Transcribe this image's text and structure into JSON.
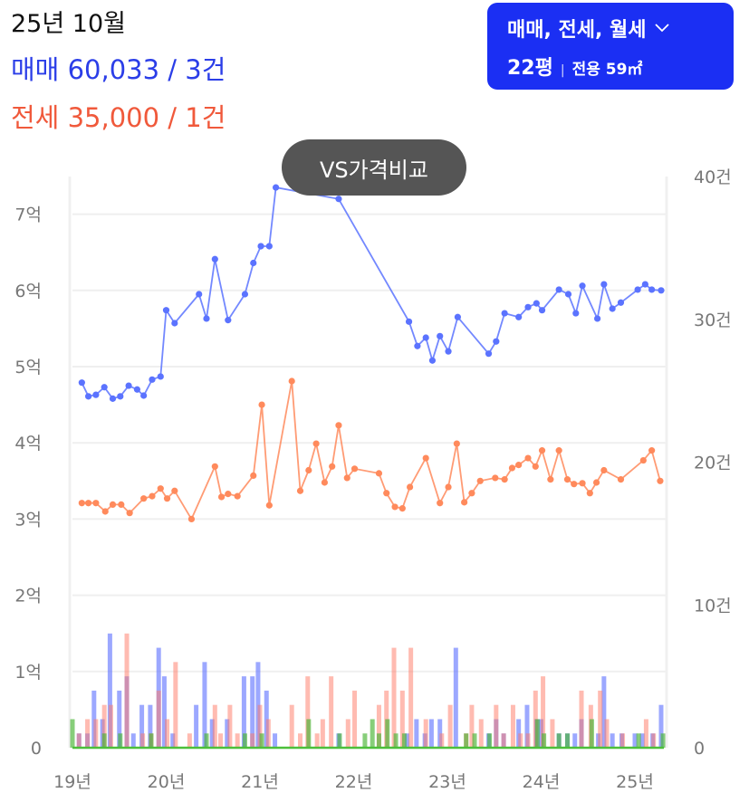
{
  "header": {
    "month": "25년 10월",
    "sale_summary": "매매 60,033 / 3건",
    "jeonse_summary": "전세 35,000 / 1건"
  },
  "filter": {
    "types": "매매, 전세, 월세",
    "pyeong": "22평",
    "separator": "|",
    "area": "전용 59㎡"
  },
  "compare_button": "VS가격비교",
  "colors": {
    "sale": "#5b73ff",
    "jeonse": "#ff8a5c",
    "wolse": "#4cbf3a",
    "button": "#1b2ff3"
  },
  "chart_data": {
    "type": "line+bar",
    "left_ylabel_ticks": [
      "0",
      "1억",
      "2억",
      "3억",
      "4억",
      "5억",
      "6억",
      "7억"
    ],
    "left_ylim": [
      0,
      7.5
    ],
    "right_ylabel_ticks": [
      "0",
      "10건",
      "20건",
      "30건",
      "40건"
    ],
    "right_ylim": [
      0,
      40
    ],
    "x_ticks": [
      "19년",
      "20년",
      "21년",
      "22년",
      "23년",
      "24년",
      "25년"
    ],
    "x_tick_values": [
      2019,
      2020,
      2021,
      2022,
      2023,
      2024,
      2025
    ],
    "grid": true,
    "series": [
      {
        "name": "매매",
        "kind": "line",
        "unit": "억",
        "points": [
          [
            2019.1,
            4.79
          ],
          [
            2019.17,
            4.61
          ],
          [
            2019.25,
            4.63
          ],
          [
            2019.34,
            4.73
          ],
          [
            2019.43,
            4.58
          ],
          [
            2019.51,
            4.61
          ],
          [
            2019.6,
            4.75
          ],
          [
            2019.69,
            4.7
          ],
          [
            2019.76,
            4.62
          ],
          [
            2019.85,
            4.83
          ],
          [
            2019.94,
            4.87
          ],
          [
            2020.0,
            5.74
          ],
          [
            2020.09,
            5.57
          ],
          [
            2020.35,
            5.95
          ],
          [
            2020.43,
            5.63
          ],
          [
            2020.52,
            6.41
          ],
          [
            2020.66,
            5.61
          ],
          [
            2020.84,
            5.95
          ],
          [
            2020.93,
            6.36
          ],
          [
            2021.01,
            6.58
          ],
          [
            2021.1,
            6.58
          ],
          [
            2021.17,
            7.35
          ],
          [
            2021.84,
            7.2
          ],
          [
            2022.59,
            5.59
          ],
          [
            2022.68,
            5.27
          ],
          [
            2022.77,
            5.38
          ],
          [
            2022.84,
            5.08
          ],
          [
            2022.92,
            5.4
          ],
          [
            2023.01,
            5.2
          ],
          [
            2023.11,
            5.65
          ],
          [
            2023.44,
            5.17
          ],
          [
            2023.52,
            5.33
          ],
          [
            2023.61,
            5.7
          ],
          [
            2023.76,
            5.65
          ],
          [
            2023.86,
            5.78
          ],
          [
            2023.95,
            5.83
          ],
          [
            2024.01,
            5.74
          ],
          [
            2024.19,
            6.01
          ],
          [
            2024.29,
            5.95
          ],
          [
            2024.37,
            5.7
          ],
          [
            2024.44,
            6.06
          ],
          [
            2024.6,
            5.63
          ],
          [
            2024.67,
            6.08
          ],
          [
            2024.76,
            5.76
          ],
          [
            2024.85,
            5.84
          ],
          [
            2025.03,
            6.01
          ],
          [
            2025.11,
            6.08
          ],
          [
            2025.18,
            6.01
          ],
          [
            2025.28,
            6.0
          ]
        ]
      },
      {
        "name": "전세",
        "kind": "line",
        "unit": "억",
        "points": [
          [
            2019.1,
            3.21
          ],
          [
            2019.17,
            3.21
          ],
          [
            2019.25,
            3.21
          ],
          [
            2019.35,
            3.1
          ],
          [
            2019.43,
            3.19
          ],
          [
            2019.52,
            3.19
          ],
          [
            2019.61,
            3.08
          ],
          [
            2019.76,
            3.27
          ],
          [
            2019.85,
            3.3
          ],
          [
            2019.94,
            3.4
          ],
          [
            2020.01,
            3.27
          ],
          [
            2020.09,
            3.37
          ],
          [
            2020.27,
            3.0
          ],
          [
            2020.52,
            3.69
          ],
          [
            2020.59,
            3.29
          ],
          [
            2020.66,
            3.33
          ],
          [
            2020.76,
            3.3
          ],
          [
            2020.93,
            3.57
          ],
          [
            2021.02,
            4.5
          ],
          [
            2021.1,
            3.18
          ],
          [
            2021.34,
            4.81
          ],
          [
            2021.43,
            3.37
          ],
          [
            2021.52,
            3.64
          ],
          [
            2021.6,
            3.99
          ],
          [
            2021.69,
            3.48
          ],
          [
            2021.77,
            3.69
          ],
          [
            2021.84,
            4.23
          ],
          [
            2021.93,
            3.54
          ],
          [
            2022.01,
            3.66
          ],
          [
            2022.27,
            3.6
          ],
          [
            2022.35,
            3.34
          ],
          [
            2022.44,
            3.16
          ],
          [
            2022.52,
            3.14
          ],
          [
            2022.6,
            3.42
          ],
          [
            2022.77,
            3.8
          ],
          [
            2022.92,
            3.21
          ],
          [
            2023.01,
            3.42
          ],
          [
            2023.1,
            3.99
          ],
          [
            2023.18,
            3.22
          ],
          [
            2023.26,
            3.34
          ],
          [
            2023.35,
            3.5
          ],
          [
            2023.51,
            3.54
          ],
          [
            2023.61,
            3.52
          ],
          [
            2023.69,
            3.67
          ],
          [
            2023.76,
            3.71
          ],
          [
            2023.86,
            3.8
          ],
          [
            2023.94,
            3.69
          ],
          [
            2024.01,
            3.9
          ],
          [
            2024.1,
            3.52
          ],
          [
            2024.19,
            3.9
          ],
          [
            2024.28,
            3.52
          ],
          [
            2024.35,
            3.46
          ],
          [
            2024.44,
            3.47
          ],
          [
            2024.52,
            3.34
          ],
          [
            2024.59,
            3.48
          ],
          [
            2024.67,
            3.64
          ],
          [
            2024.85,
            3.52
          ],
          [
            2025.09,
            3.77
          ],
          [
            2025.18,
            3.9
          ],
          [
            2025.27,
            3.5
          ]
        ]
      },
      {
        "name": "매매 거래량",
        "kind": "bar",
        "unit": "건",
        "points": [
          [
            2019.07,
            1
          ],
          [
            2019.16,
            1
          ],
          [
            2019.23,
            4
          ],
          [
            2019.32,
            2
          ],
          [
            2019.4,
            8
          ],
          [
            2019.5,
            4
          ],
          [
            2019.58,
            5
          ],
          [
            2019.65,
            1
          ],
          [
            2019.74,
            3
          ],
          [
            2019.83,
            3
          ],
          [
            2019.92,
            7
          ],
          [
            2019.98,
            5
          ],
          [
            2020.07,
            1
          ],
          [
            2020.32,
            3
          ],
          [
            2020.41,
            6
          ],
          [
            2020.49,
            2
          ],
          [
            2020.65,
            2
          ],
          [
            2020.83,
            5
          ],
          [
            2020.92,
            5
          ],
          [
            2020.98,
            6
          ],
          [
            2021.07,
            4
          ],
          [
            2021.16,
            1
          ],
          [
            2021.84,
            1
          ],
          [
            2022.57,
            1
          ],
          [
            2022.67,
            2
          ],
          [
            2022.76,
            1
          ],
          [
            2022.83,
            2
          ],
          [
            2022.92,
            2
          ],
          [
            2023.09,
            7
          ],
          [
            2023.44,
            1
          ],
          [
            2023.52,
            2
          ],
          [
            2023.6,
            1
          ],
          [
            2023.76,
            2
          ],
          [
            2023.85,
            3
          ],
          [
            2023.95,
            2
          ],
          [
            2024.0,
            2
          ],
          [
            2024.19,
            1
          ],
          [
            2024.28,
            1
          ],
          [
            2024.36,
            1
          ],
          [
            2024.43,
            2
          ],
          [
            2024.61,
            1
          ],
          [
            2024.67,
            5
          ],
          [
            2024.76,
            1
          ],
          [
            2024.86,
            1
          ],
          [
            2025.0,
            1
          ],
          [
            2025.08,
            1
          ],
          [
            2025.19,
            1
          ],
          [
            2025.28,
            3
          ]
        ]
      },
      {
        "name": "전세 거래량",
        "kind": "bar",
        "unit": "건",
        "points": [
          [
            2019.07,
            1
          ],
          [
            2019.16,
            2
          ],
          [
            2019.25,
            2
          ],
          [
            2019.34,
            3
          ],
          [
            2019.41,
            3
          ],
          [
            2019.58,
            8
          ],
          [
            2019.75,
            1
          ],
          [
            2019.84,
            1
          ],
          [
            2019.92,
            4
          ],
          [
            2020.01,
            2
          ],
          [
            2020.1,
            6
          ],
          [
            2020.25,
            1
          ],
          [
            2020.52,
            3
          ],
          [
            2020.58,
            1
          ],
          [
            2020.68,
            3
          ],
          [
            2020.76,
            1
          ],
          [
            2020.92,
            1
          ],
          [
            2021.0,
            3
          ],
          [
            2021.09,
            2
          ],
          [
            2021.34,
            3
          ],
          [
            2021.43,
            1
          ],
          [
            2021.51,
            5
          ],
          [
            2021.61,
            1
          ],
          [
            2021.67,
            2
          ],
          [
            2021.76,
            5
          ],
          [
            2021.94,
            2
          ],
          [
            2022.01,
            4
          ],
          [
            2022.27,
            3
          ],
          [
            2022.35,
            4
          ],
          [
            2022.43,
            7
          ],
          [
            2022.52,
            4
          ],
          [
            2022.61,
            7
          ],
          [
            2022.77,
            2
          ],
          [
            2022.94,
            1
          ],
          [
            2023.03,
            3
          ],
          [
            2023.2,
            1
          ],
          [
            2023.26,
            3
          ],
          [
            2023.36,
            2
          ],
          [
            2023.52,
            3
          ],
          [
            2023.6,
            1
          ],
          [
            2023.7,
            3
          ],
          [
            2023.78,
            1
          ],
          [
            2023.86,
            1
          ],
          [
            2023.94,
            4
          ],
          [
            2024.02,
            5
          ],
          [
            2024.12,
            2
          ],
          [
            2024.43,
            4
          ],
          [
            2024.53,
            3
          ],
          [
            2024.63,
            4
          ],
          [
            2024.7,
            2
          ],
          [
            2024.87,
            1
          ],
          [
            2025.12,
            2
          ],
          [
            2025.2,
            1
          ]
        ]
      },
      {
        "name": "월세 거래량",
        "kind": "bar",
        "unit": "건",
        "points": [
          [
            2019.0,
            2
          ],
          [
            2019.34,
            1
          ],
          [
            2019.51,
            1
          ],
          [
            2019.84,
            1
          ],
          [
            2020.43,
            1
          ],
          [
            2020.84,
            1
          ],
          [
            2021.02,
            1
          ],
          [
            2021.52,
            2
          ],
          [
            2021.85,
            1
          ],
          [
            2022.12,
            1
          ],
          [
            2022.2,
            2
          ],
          [
            2022.27,
            1
          ],
          [
            2022.36,
            2
          ],
          [
            2022.45,
            1
          ],
          [
            2022.54,
            1
          ],
          [
            2023.2,
            1
          ],
          [
            2023.29,
            1
          ],
          [
            2023.45,
            1
          ],
          [
            2023.96,
            2
          ],
          [
            2024.03,
            1
          ],
          [
            2024.19,
            1
          ],
          [
            2024.28,
            1
          ],
          [
            2024.54,
            2
          ],
          [
            2025.04,
            1
          ],
          [
            2025.3,
            1
          ]
        ]
      }
    ]
  }
}
